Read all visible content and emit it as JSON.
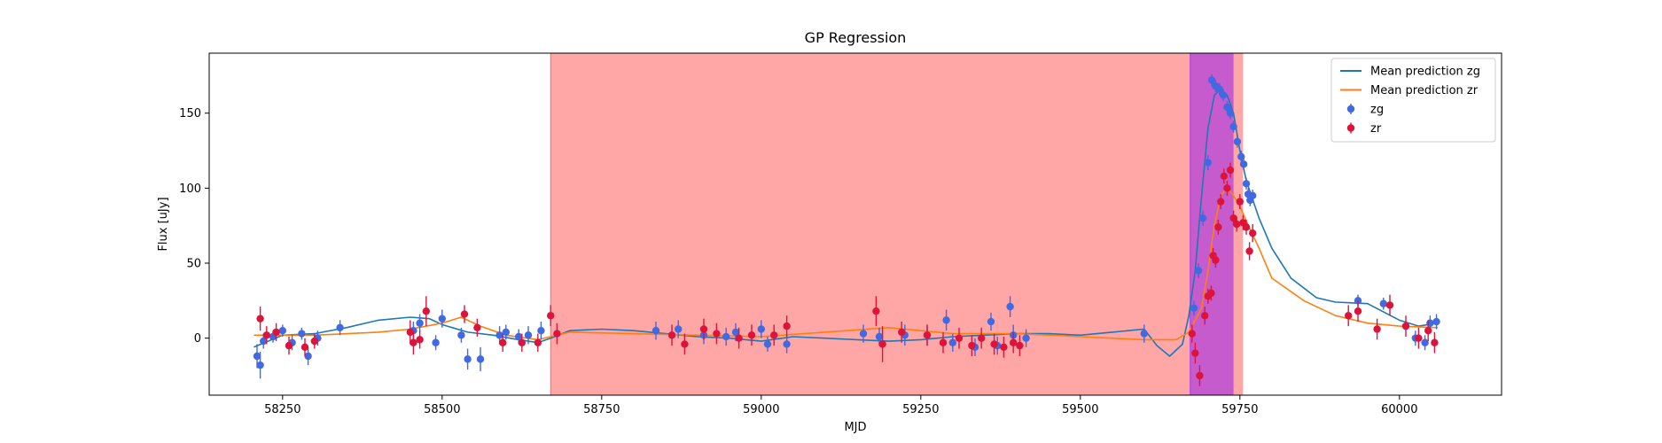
{
  "chart_data": {
    "type": "scatter",
    "title": "GP Regression",
    "xlabel": "MJD",
    "ylabel": "Flux [uJy]",
    "xlim": [
      58135,
      60160
    ],
    "ylim": [
      -38,
      190
    ],
    "xticks": [
      58250,
      58500,
      58750,
      59000,
      59250,
      59500,
      59750,
      60000
    ],
    "yticks": [
      0,
      50,
      100,
      150
    ],
    "grid": false,
    "legend_position": "top-right",
    "shaded_regions": [
      {
        "x_start": 58670,
        "x_end": 59755,
        "color": "#ff0000",
        "alpha": 0.35
      },
      {
        "x_start": 59672,
        "x_end": 59740,
        "color": "#8000ff",
        "alpha": 0.45
      }
    ],
    "series": [
      {
        "name": "Mean prediction zg",
        "kind": "line",
        "color": "#1f77b4",
        "x": [
          58205,
          58250,
          58300,
          58350,
          58400,
          58450,
          58480,
          58500,
          58540,
          58580,
          58620,
          58650,
          58670,
          58700,
          58750,
          58800,
          58850,
          58900,
          58950,
          59000,
          59050,
          59100,
          59150,
          59200,
          59250,
          59300,
          59350,
          59400,
          59450,
          59500,
          59550,
          59600,
          59620,
          59640,
          59660,
          59670,
          59680,
          59690,
          59700,
          59710,
          59720,
          59730,
          59740,
          59750,
          59760,
          59780,
          59800,
          59830,
          59870,
          59900,
          59950,
          60000,
          60030,
          60060
        ],
        "y": [
          -6,
          2,
          3,
          7,
          12,
          14,
          13,
          9,
          4,
          2,
          -1,
          -3,
          0,
          5,
          6,
          5,
          3,
          1,
          0,
          -2,
          1,
          0,
          -1,
          -2,
          -1,
          1,
          2,
          3,
          3,
          2,
          4,
          6,
          -5,
          -12,
          -4,
          15,
          45,
          95,
          140,
          162,
          166,
          162,
          150,
          125,
          105,
          80,
          60,
          40,
          27,
          24,
          23,
          12,
          8,
          10
        ]
      },
      {
        "name": "Mean prediction zr",
        "kind": "line",
        "color": "#ff7f0e",
        "x": [
          58205,
          58300,
          58400,
          58450,
          58500,
          58530,
          58560,
          58600,
          58650,
          58700,
          58800,
          58900,
          59000,
          59100,
          59200,
          59300,
          59400,
          59500,
          59600,
          59650,
          59670,
          59690,
          59700,
          59710,
          59720,
          59730,
          59740,
          59750,
          59760,
          59780,
          59800,
          59850,
          59900,
          59950,
          60000,
          60060
        ],
        "y": [
          2,
          2,
          4,
          6,
          10,
          14,
          8,
          2,
          -1,
          4,
          3,
          2,
          1,
          4,
          7,
          3,
          3,
          1,
          -1,
          -1,
          4,
          20,
          45,
          75,
          95,
          100,
          95,
          88,
          78,
          60,
          40,
          25,
          15,
          10,
          8,
          7
        ]
      },
      {
        "name": "zg",
        "kind": "points",
        "color": "#4169e1",
        "x": [
          58210,
          58215,
          58220,
          58235,
          58250,
          58265,
          58280,
          58290,
          58305,
          58340,
          58455,
          58465,
          58490,
          58500,
          58530,
          58540,
          58560,
          58590,
          58600,
          58620,
          58635,
          58655,
          58835,
          58870,
          58910,
          58945,
          58960,
          59000,
          59010,
          59040,
          59160,
          59185,
          59225,
          59260,
          59290,
          59300,
          59335,
          59360,
          59370,
          59390,
          59395,
          59415,
          59600,
          59678,
          59685,
          59692,
          59700,
          59706,
          59712,
          59718,
          59724,
          59730,
          59735,
          59740,
          59746,
          59752,
          59756,
          59760,
          59763,
          59766,
          59770,
          59935,
          59975,
          60025,
          60040,
          60048,
          60058
        ],
        "y": [
          -12,
          -18,
          -2,
          1,
          5,
          -3,
          3,
          -12,
          0,
          7,
          5,
          10,
          -3,
          13,
          2,
          -14,
          -14,
          2,
          4,
          1,
          2,
          5,
          5,
          6,
          2,
          1,
          4,
          6,
          -4,
          -4,
          3,
          1,
          2,
          2,
          12,
          -3,
          -6,
          11,
          -5,
          21,
          2,
          0,
          3,
          20,
          45,
          80,
          117,
          172,
          168,
          166,
          162,
          154,
          150,
          141,
          131,
          121,
          116,
          103,
          96,
          92,
          95,
          25,
          23,
          0,
          -3,
          10,
          11
        ],
        "yerr": [
          8,
          9,
          5,
          4,
          4,
          5,
          4,
          6,
          5,
          5,
          6,
          6,
          5,
          6,
          5,
          7,
          8,
          6,
          5,
          5,
          6,
          6,
          6,
          6,
          6,
          6,
          6,
          6,
          5,
          6,
          6,
          6,
          7,
          7,
          7,
          6,
          6,
          6,
          6,
          7,
          7,
          6,
          6,
          5,
          5,
          5,
          5,
          4,
          4,
          4,
          4,
          4,
          4,
          4,
          4,
          4,
          4,
          4,
          4,
          4,
          4,
          4,
          4,
          5,
          5,
          5,
          5
        ]
      },
      {
        "name": "zr",
        "kind": "points",
        "color": "#dc143c",
        "x": [
          58215,
          58225,
          58240,
          58260,
          58285,
          58300,
          58450,
          58455,
          58465,
          58475,
          58535,
          58555,
          58595,
          58625,
          58650,
          58670,
          58680,
          58860,
          58880,
          58910,
          58930,
          58965,
          58985,
          59020,
          59040,
          59180,
          59190,
          59220,
          59260,
          59285,
          59310,
          59330,
          59345,
          59365,
          59380,
          59395,
          59405,
          59675,
          59680,
          59687,
          59695,
          59700,
          59705,
          59708,
          59712,
          59716,
          59720,
          59725,
          59730,
          59735,
          59740,
          59745,
          59750,
          59755,
          59760,
          59765,
          59770,
          59920,
          59935,
          59965,
          59985,
          60010,
          60030,
          60045,
          60055
        ],
        "y": [
          13,
          2,
          4,
          -5,
          -6,
          -2,
          4,
          -3,
          -1,
          18,
          16,
          7,
          -3,
          -3,
          -3,
          15,
          3,
          2,
          -4,
          6,
          3,
          0,
          2,
          2,
          8,
          18,
          -4,
          4,
          2,
          -3,
          0,
          -5,
          0,
          -4,
          -6,
          -3,
          -5,
          3,
          -10,
          -25,
          15,
          28,
          30,
          55,
          52,
          74,
          91,
          108,
          100,
          112,
          80,
          76,
          91,
          77,
          74,
          58,
          70,
          15,
          18,
          6,
          22,
          8,
          0,
          5,
          -3
        ],
        "yerr": [
          8,
          6,
          6,
          6,
          6,
          5,
          8,
          8,
          6,
          10,
          6,
          6,
          6,
          6,
          6,
          7,
          7,
          7,
          7,
          7,
          7,
          7,
          7,
          7,
          7,
          10,
          12,
          7,
          7,
          7,
          7,
          7,
          7,
          7,
          7,
          7,
          7,
          6,
          7,
          7,
          6,
          5,
          5,
          5,
          5,
          5,
          5,
          5,
          5,
          5,
          5,
          5,
          5,
          5,
          5,
          6,
          6,
          7,
          7,
          7,
          7,
          7,
          7,
          7,
          7
        ]
      }
    ]
  }
}
